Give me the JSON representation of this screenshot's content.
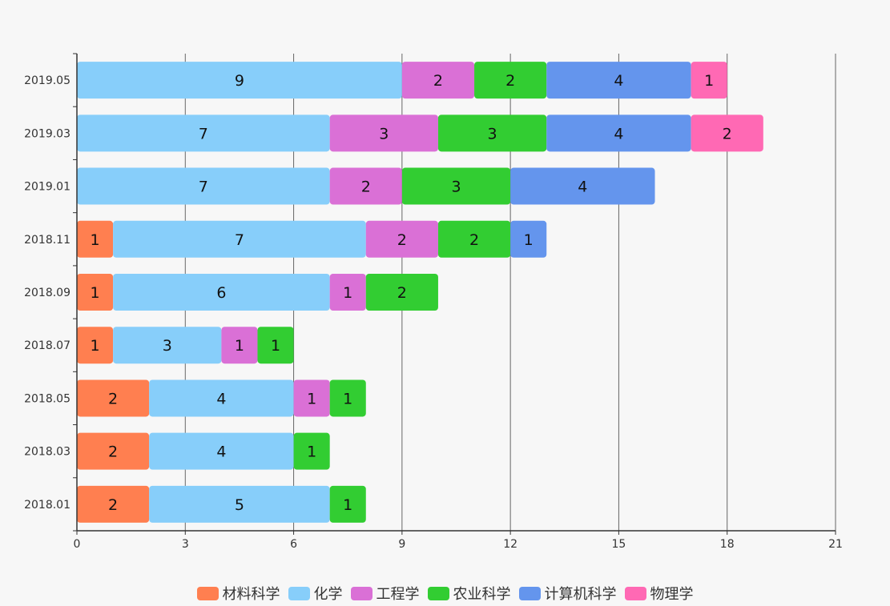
{
  "chart_data": {
    "type": "bar",
    "orientation": "horizontal",
    "stacked": true,
    "categories": [
      "2018.01",
      "2018.03",
      "2018.05",
      "2018.07",
      "2018.09",
      "2018.11",
      "2019.01",
      "2019.03",
      "2019.05"
    ],
    "series": [
      {
        "name": "材料科学",
        "color": "#ff7f50",
        "values": [
          2,
          2,
          2,
          1,
          1,
          1,
          0,
          0,
          0
        ]
      },
      {
        "name": "化学",
        "color": "#87cefa",
        "values": [
          5,
          4,
          4,
          3,
          6,
          7,
          7,
          7,
          9
        ]
      },
      {
        "name": "工程学",
        "color": "#da70d6",
        "values": [
          0,
          0,
          1,
          1,
          1,
          2,
          2,
          3,
          2
        ]
      },
      {
        "name": "农业科学",
        "color": "#32cd32",
        "values": [
          1,
          1,
          1,
          1,
          2,
          2,
          3,
          3,
          2
        ]
      },
      {
        "name": "计算机科学",
        "color": "#6495ed",
        "values": [
          0,
          0,
          0,
          0,
          0,
          1,
          4,
          4,
          4
        ]
      },
      {
        "name": "物理学",
        "color": "#ff69b4",
        "values": [
          0,
          0,
          0,
          0,
          0,
          0,
          0,
          2,
          1
        ]
      }
    ],
    "xlim": [
      0,
      21
    ],
    "xticks": [
      "0",
      "3",
      "6",
      "9",
      "12",
      "15",
      "18",
      "21"
    ],
    "grid": "vertical",
    "legend": "bottom-center",
    "data_labels": "inside"
  }
}
